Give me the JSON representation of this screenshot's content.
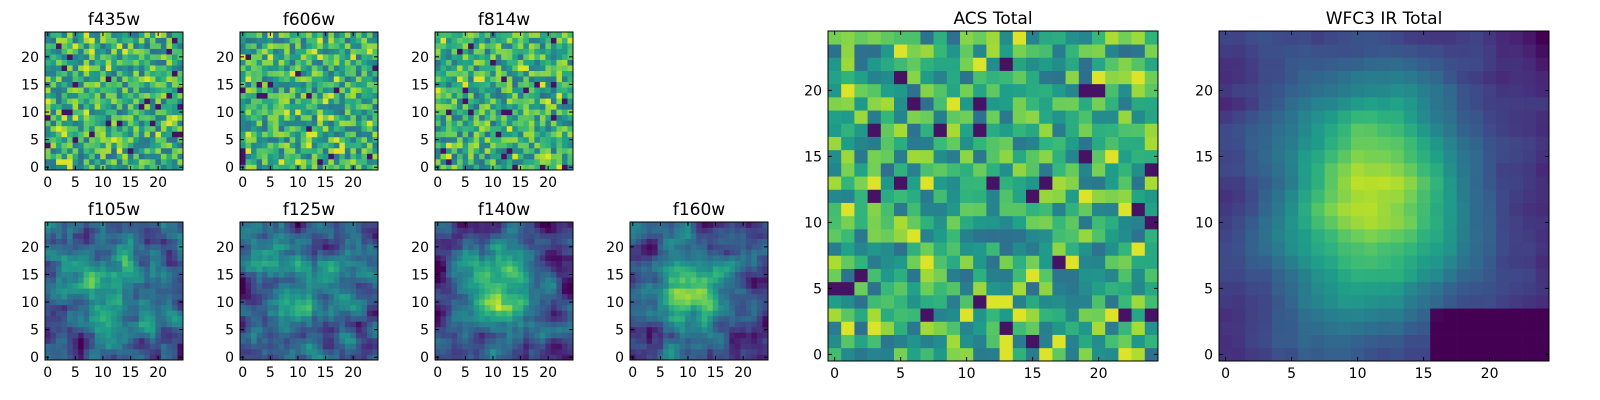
{
  "chart_data": [
    {
      "type": "heatmap",
      "title": "f435w",
      "grid": [
        25,
        25
      ],
      "xlim": [
        0,
        24
      ],
      "ylim": [
        0,
        24
      ],
      "x_ticks": [
        "0",
        "5",
        "10",
        "15",
        "20"
      ],
      "y_ticks": [
        "0",
        "5",
        "10",
        "15",
        "20"
      ],
      "pattern": "noise",
      "colormap": "viridis"
    },
    {
      "type": "heatmap",
      "title": "f606w",
      "grid": [
        25,
        25
      ],
      "xlim": [
        0,
        24
      ],
      "ylim": [
        0,
        24
      ],
      "x_ticks": [
        "0",
        "5",
        "10",
        "15",
        "20"
      ],
      "y_ticks": [
        "0",
        "5",
        "10",
        "15",
        "20"
      ],
      "pattern": "noise",
      "colormap": "viridis"
    },
    {
      "type": "heatmap",
      "title": "f814w",
      "grid": [
        25,
        25
      ],
      "xlim": [
        0,
        24
      ],
      "ylim": [
        0,
        24
      ],
      "x_ticks": [
        "0",
        "5",
        "10",
        "15",
        "20"
      ],
      "y_ticks": [
        "0",
        "5",
        "10",
        "15",
        "20"
      ],
      "pattern": "noise",
      "colormap": "viridis"
    },
    {
      "type": "heatmap",
      "title": "f105w",
      "grid": [
        25,
        25
      ],
      "xlim": [
        0,
        24
      ],
      "ylim": [
        0,
        24
      ],
      "x_ticks": [
        "0",
        "5",
        "10",
        "15",
        "20"
      ],
      "y_ticks": [
        "0",
        "5",
        "10",
        "15",
        "20"
      ],
      "pattern": "smooth",
      "colormap": "viridis"
    },
    {
      "type": "heatmap",
      "title": "f125w",
      "grid": [
        25,
        25
      ],
      "xlim": [
        0,
        24
      ],
      "ylim": [
        0,
        24
      ],
      "x_ticks": [
        "0",
        "5",
        "10",
        "15",
        "20"
      ],
      "y_ticks": [
        "0",
        "5",
        "10",
        "15",
        "20"
      ],
      "pattern": "smooth",
      "colormap": "viridis"
    },
    {
      "type": "heatmap",
      "title": "f140w",
      "grid": [
        25,
        25
      ],
      "xlim": [
        0,
        24
      ],
      "ylim": [
        0,
        24
      ],
      "x_ticks": [
        "0",
        "5",
        "10",
        "15",
        "20"
      ],
      "y_ticks": [
        "0",
        "5",
        "10",
        "15",
        "20"
      ],
      "pattern": "centered",
      "colormap": "viridis"
    },
    {
      "type": "heatmap",
      "title": "f160w",
      "grid": [
        25,
        25
      ],
      "xlim": [
        0,
        24
      ],
      "ylim": [
        0,
        24
      ],
      "x_ticks": [
        "0",
        "5",
        "10",
        "15",
        "20"
      ],
      "y_ticks": [
        "0",
        "5",
        "10",
        "15",
        "20"
      ],
      "pattern": "centered",
      "colormap": "viridis"
    },
    {
      "type": "heatmap",
      "title": "ACS Total",
      "grid": [
        25,
        25
      ],
      "xlim": [
        0,
        24
      ],
      "ylim": [
        0,
        24
      ],
      "x_ticks": [
        "0",
        "5",
        "10",
        "15",
        "20"
      ],
      "y_ticks": [
        "0",
        "5",
        "10",
        "15",
        "20"
      ],
      "pattern": "noise",
      "colormap": "viridis"
    },
    {
      "type": "heatmap",
      "title": "WFC3 IR Total",
      "grid": [
        25,
        25
      ],
      "xlim": [
        0,
        24
      ],
      "ylim": [
        0,
        24
      ],
      "x_ticks": [
        "0",
        "5",
        "10",
        "15",
        "20"
      ],
      "y_ticks": [
        "0",
        "5",
        "10",
        "15",
        "20"
      ],
      "pattern": "blob",
      "colormap": "viridis"
    }
  ]
}
